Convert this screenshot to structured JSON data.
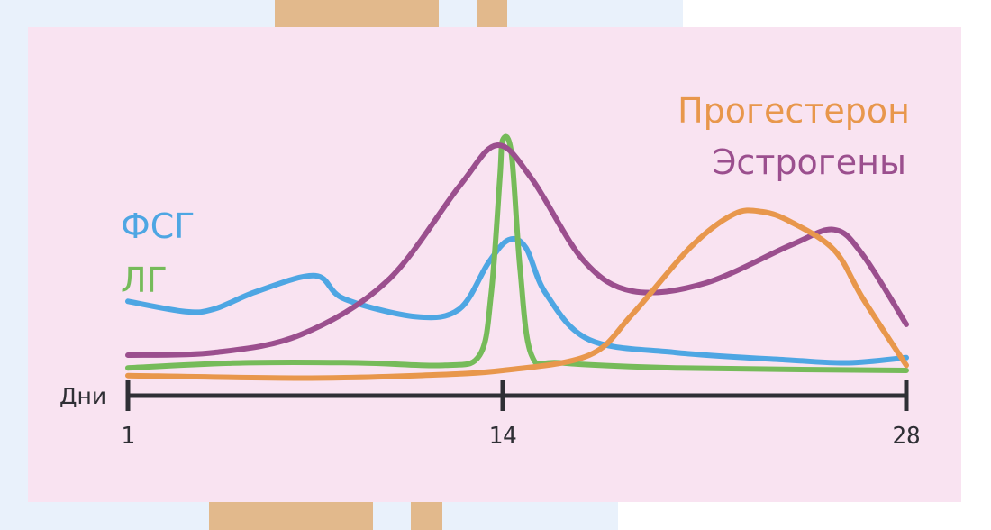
{
  "colors": {
    "fsh": "#4ea6e3",
    "lh": "#76bb5a",
    "estrogen": "#9b4f8e",
    "progesterone": "#e8974c",
    "axis": "#2f2f35",
    "panel": "#f9e3f1"
  },
  "chart_data": {
    "type": "line",
    "title": "",
    "xlabel": "Дни",
    "ylabel": "",
    "xlim": [
      1,
      28
    ],
    "ylim": [
      0,
      100
    ],
    "x_ticks": [
      1,
      14,
      28
    ],
    "x_tick_labels": [
      "1",
      "14",
      "28"
    ],
    "grid": false,
    "legend": {
      "left": [
        "ФСГ",
        "ЛГ"
      ],
      "top-right": [
        "Прогестерон",
        "Эстрогены"
      ]
    },
    "series": [
      {
        "name": "ФСГ",
        "color": "#4ea6e3",
        "points": [
          [
            1,
            27
          ],
          [
            3,
            23
          ],
          [
            4,
            24
          ],
          [
            5.5,
            31
          ],
          [
            7.5,
            37
          ],
          [
            8.5,
            28
          ],
          [
            11,
            21
          ],
          [
            12.5,
            24
          ],
          [
            13.5,
            42
          ],
          [
            14.2,
            51
          ],
          [
            14.8,
            48
          ],
          [
            15.5,
            30
          ],
          [
            17,
            12
          ],
          [
            20,
            7
          ],
          [
            24,
            4
          ],
          [
            26,
            3
          ],
          [
            28,
            5
          ]
        ]
      },
      {
        "name": "ЛГ",
        "color": "#76bb5a",
        "points": [
          [
            1,
            1
          ],
          [
            5,
            3
          ],
          [
            9,
            3
          ],
          [
            12,
            2
          ],
          [
            13.2,
            6
          ],
          [
            13.6,
            30
          ],
          [
            13.9,
            75
          ],
          [
            14,
            90
          ],
          [
            14.3,
            85
          ],
          [
            14.6,
            40
          ],
          [
            15,
            6
          ],
          [
            16,
            3
          ],
          [
            20,
            1
          ],
          [
            28,
            0
          ]
        ]
      },
      {
        "name": "Эстрогены",
        "color": "#9b4f8e",
        "points": [
          [
            1,
            6
          ],
          [
            4,
            7
          ],
          [
            7,
            14
          ],
          [
            10,
            35
          ],
          [
            12.5,
            72
          ],
          [
            13.8,
            88
          ],
          [
            15,
            75
          ],
          [
            16.8,
            43
          ],
          [
            18.5,
            31
          ],
          [
            21,
            34
          ],
          [
            24,
            49
          ],
          [
            25.5,
            55
          ],
          [
            26.5,
            45
          ],
          [
            28,
            18
          ]
        ]
      },
      {
        "name": "Прогестерон",
        "color": "#e8974c",
        "points": [
          [
            1,
            -2
          ],
          [
            7,
            -3
          ],
          [
            11,
            -2
          ],
          [
            14,
            0
          ],
          [
            17,
            6
          ],
          [
            18.5,
            22
          ],
          [
            20.5,
            48
          ],
          [
            22,
            61
          ],
          [
            23,
            62
          ],
          [
            24,
            58
          ],
          [
            25.5,
            47
          ],
          [
            26.5,
            28
          ],
          [
            28,
            2
          ]
        ]
      }
    ]
  }
}
